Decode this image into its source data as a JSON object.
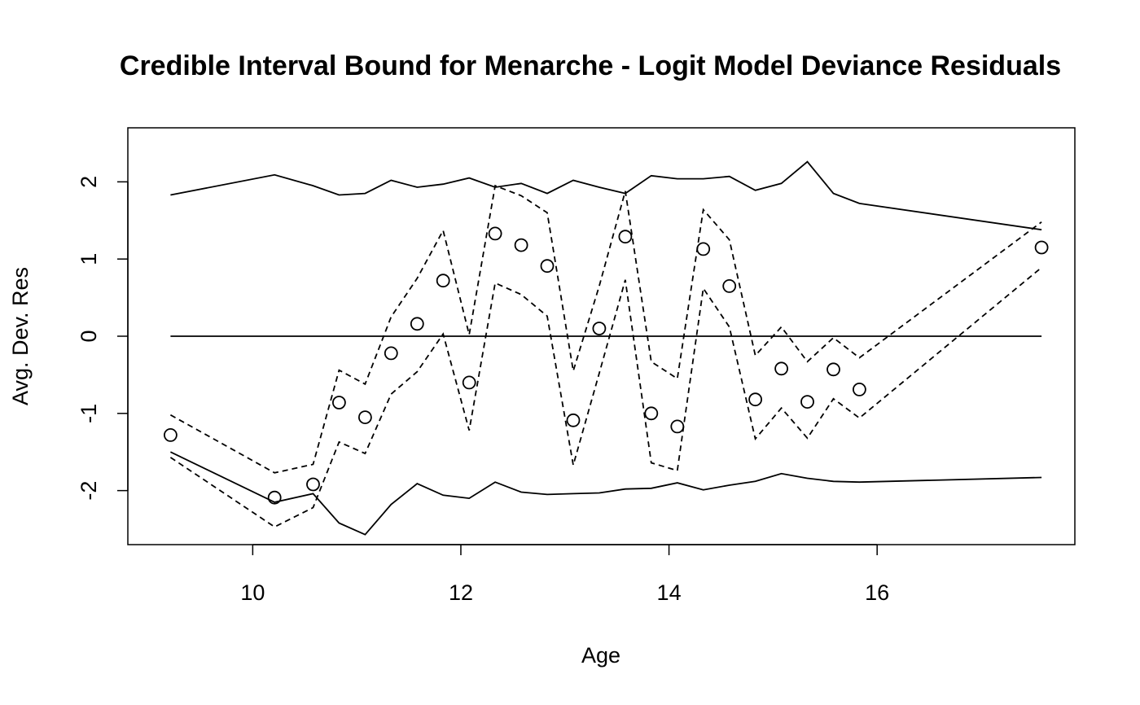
{
  "chart_data": {
    "type": "scatter",
    "title": "Credible Interval Bound for Menarche - Logit Model Deviance Residuals",
    "xlabel": "Age",
    "ylabel": "Avg. Dev. Res",
    "xlim": [
      8.8,
      17.9
    ],
    "ylim": [
      -2.7,
      2.7
    ],
    "xticks": [
      10,
      12,
      14,
      16
    ],
    "yticks": [
      -2,
      -1,
      0,
      1,
      2
    ],
    "x": [
      9.21,
      10.21,
      10.58,
      10.83,
      11.08,
      11.33,
      11.58,
      11.83,
      12.08,
      12.33,
      12.58,
      12.83,
      13.08,
      13.33,
      13.58,
      13.83,
      14.08,
      14.33,
      14.58,
      14.83,
      15.08,
      15.33,
      15.58,
      15.83,
      17.58
    ],
    "series": [
      {
        "name": "Observed avg. deviance residual",
        "style": "points",
        "values": [
          -1.28,
          -2.09,
          -1.92,
          -0.86,
          -1.05,
          -0.22,
          0.16,
          0.72,
          -0.6,
          1.33,
          1.18,
          0.91,
          -1.09,
          0.1,
          1.29,
          -1.0,
          -1.17,
          1.13,
          0.65,
          -0.82,
          -0.42,
          -0.85,
          -0.43,
          -0.69,
          1.15
        ]
      },
      {
        "name": "Upper credible bound",
        "style": "dashed",
        "values": [
          -1.02,
          -1.77,
          -1.66,
          -0.44,
          -0.62,
          0.25,
          0.75,
          1.37,
          0.02,
          1.95,
          1.82,
          1.6,
          -0.45,
          0.65,
          1.88,
          -0.33,
          -0.55,
          1.64,
          1.25,
          -0.25,
          0.12,
          -0.33,
          -0.02,
          -0.28,
          1.48
        ]
      },
      {
        "name": "Lower credible bound",
        "style": "dashed",
        "values": [
          -1.57,
          -2.47,
          -2.22,
          -1.37,
          -1.52,
          -0.75,
          -0.46,
          0.03,
          -1.22,
          0.69,
          0.54,
          0.26,
          -1.67,
          -0.48,
          0.73,
          -1.64,
          -1.74,
          0.62,
          0.12,
          -1.33,
          -0.93,
          -1.32,
          -0.81,
          -1.06,
          0.89
        ]
      },
      {
        "name": "Upper reference bound",
        "style": "solid",
        "values": [
          1.83,
          2.09,
          1.95,
          1.83,
          1.85,
          2.02,
          1.93,
          1.97,
          2.05,
          1.93,
          1.98,
          1.85,
          2.02,
          1.93,
          1.85,
          2.08,
          2.04,
          2.04,
          2.07,
          1.89,
          1.98,
          2.26,
          1.85,
          1.72,
          1.38
        ]
      },
      {
        "name": "Lower reference bound",
        "style": "solid",
        "values": [
          -1.5,
          -2.15,
          -2.04,
          -2.42,
          -2.57,
          -2.18,
          -1.91,
          -2.06,
          -2.1,
          -1.89,
          -2.02,
          -2.05,
          -2.04,
          -2.03,
          -1.98,
          -1.97,
          -1.9,
          -1.99,
          -1.93,
          -1.88,
          -1.78,
          -1.84,
          -1.88,
          -1.89,
          -1.83
        ]
      },
      {
        "name": "Zero reference",
        "style": "solid",
        "values": [
          0,
          0,
          0,
          0,
          0,
          0,
          0,
          0,
          0,
          0,
          0,
          0,
          0,
          0,
          0,
          0,
          0,
          0,
          0,
          0,
          0,
          0,
          0,
          0,
          0
        ]
      }
    ],
    "grid": false,
    "legend": "none"
  }
}
